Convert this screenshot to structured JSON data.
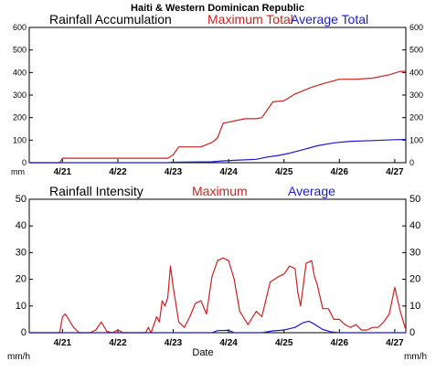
{
  "figure": {
    "title": "Haiti & Western Dominican Republic",
    "xlabel": "Date"
  },
  "colors": {
    "maximum": "#cc2222",
    "average": "#1a1acc",
    "axis": "#000000"
  },
  "chart_data": [
    {
      "type": "line",
      "title": "Rainfall Accumulation",
      "legend": [
        "Maximum Total",
        "Average Total"
      ],
      "unit_label": "mm",
      "ylim": [
        0,
        600
      ],
      "yticks": [
        0,
        100,
        200,
        300,
        400,
        500,
        600
      ],
      "xlim": [
        20.4,
        27.2
      ],
      "xticks": [
        "4/21",
        "4/22",
        "4/23",
        "4/24",
        "4/25",
        "4/26",
        "4/27"
      ],
      "series": [
        {
          "name": "Maximum Total",
          "color_key": "maximum",
          "x": [
            20.4,
            20.95,
            21.0,
            22.9,
            23.0,
            23.1,
            23.5,
            23.7,
            23.8,
            23.9,
            24.3,
            24.5,
            24.6,
            24.7,
            24.8,
            25.0,
            25.2,
            25.5,
            25.7,
            26.0,
            26.3,
            26.6,
            26.9,
            27.1,
            27.2
          ],
          "y": [
            0,
            0,
            20,
            20,
            35,
            70,
            70,
            90,
            110,
            175,
            195,
            195,
            200,
            235,
            270,
            275,
            305,
            335,
            350,
            370,
            370,
            375,
            390,
            405,
            405
          ]
        },
        {
          "name": "Average Total",
          "color_key": "average",
          "x": [
            20.4,
            22.9,
            23.0,
            23.7,
            23.9,
            24.5,
            24.7,
            24.9,
            25.1,
            25.3,
            25.6,
            25.9,
            26.2,
            26.6,
            27.0,
            27.2
          ],
          "y": [
            0,
            0,
            2,
            4,
            8,
            15,
            25,
            32,
            42,
            55,
            75,
            88,
            95,
            98,
            102,
            103
          ]
        }
      ]
    },
    {
      "type": "line",
      "title": "Rainfall Intensity",
      "legend": [
        "Maximum",
        "Average"
      ],
      "unit_label": "mm/h",
      "ylim": [
        0,
        50
      ],
      "yticks": [
        0,
        10,
        20,
        30,
        40,
        50
      ],
      "xlim": [
        20.4,
        27.2
      ],
      "xticks": [
        "4/21",
        "4/22",
        "4/23",
        "4/24",
        "4/25",
        "4/26",
        "4/27"
      ],
      "series": [
        {
          "name": "Maximum",
          "color_key": "maximum",
          "x": [
            20.4,
            20.95,
            21.0,
            21.05,
            21.2,
            21.3,
            21.4,
            21.5,
            21.6,
            21.7,
            21.8,
            21.9,
            22.0,
            22.1,
            22.2,
            22.3,
            22.4,
            22.5,
            22.55,
            22.6,
            22.7,
            22.75,
            22.8,
            22.85,
            22.9,
            22.95,
            23.0,
            23.1,
            23.2,
            23.3,
            23.4,
            23.5,
            23.6,
            23.7,
            23.8,
            23.9,
            24.0,
            24.1,
            24.2,
            24.35,
            24.5,
            24.6,
            24.75,
            24.9,
            25.0,
            25.1,
            25.2,
            25.25,
            25.3,
            25.4,
            25.5,
            25.55,
            25.6,
            25.7,
            25.8,
            25.9,
            26.0,
            26.1,
            26.2,
            26.3,
            26.4,
            26.5,
            26.6,
            26.7,
            26.8,
            26.9,
            27.0,
            27.1,
            27.2
          ],
          "y": [
            0,
            0,
            6,
            7,
            2,
            0,
            0,
            0,
            1,
            4,
            0.5,
            0,
            1,
            0,
            0,
            0,
            0,
            0,
            2,
            0,
            6,
            4,
            12,
            10,
            13,
            25,
            17,
            4,
            2,
            6,
            11,
            12,
            7,
            21,
            27,
            28,
            27,
            20,
            8,
            3,
            8,
            6,
            19,
            21,
            22,
            25,
            24,
            15,
            10,
            26,
            27,
            21,
            18,
            9,
            9,
            5,
            5,
            3,
            2,
            3,
            1,
            1,
            2,
            2,
            4,
            7,
            17,
            8,
            1
          ]
        },
        {
          "name": "Average",
          "color_key": "average",
          "x": [
            20.4,
            23.7,
            23.8,
            24.0,
            24.1,
            24.6,
            24.8,
            25.0,
            25.2,
            25.35,
            25.45,
            25.55,
            25.7,
            25.85,
            26.0,
            27.2
          ],
          "y": [
            0,
            0,
            0.8,
            0.9,
            0,
            0,
            0.7,
            1.0,
            2.0,
            3.8,
            4.3,
            3.2,
            1.2,
            0.3,
            0,
            0
          ]
        }
      ]
    }
  ]
}
